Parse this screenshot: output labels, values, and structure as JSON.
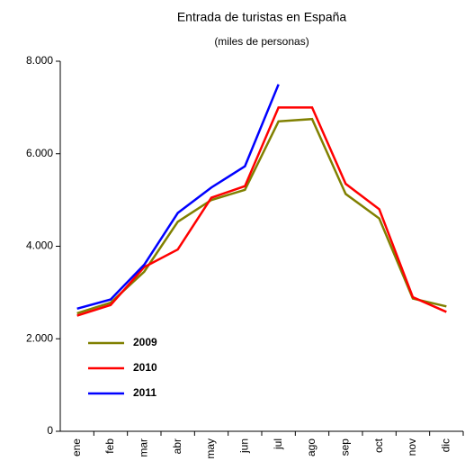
{
  "chart_data": {
    "type": "line",
    "title": "Entrada de turistas en España",
    "subtitle": "(miles de personas)",
    "categories": [
      "ene",
      "feb",
      "mar",
      "abr",
      "may",
      "jun",
      "jul",
      "ago",
      "sep",
      "oct",
      "nov",
      "dic"
    ],
    "series": [
      {
        "name": "2009",
        "color": "#808000",
        "values": [
          2550,
          2780,
          3450,
          4530,
          5000,
          5220,
          6700,
          6750,
          5130,
          4600,
          2870,
          2700
        ]
      },
      {
        "name": "2010",
        "color": "#ff0000",
        "values": [
          2500,
          2730,
          3550,
          3930,
          5050,
          5300,
          7000,
          7000,
          5350,
          4800,
          2900,
          2580
        ]
      },
      {
        "name": "2011",
        "color": "#0000ff",
        "values": [
          2650,
          2850,
          3600,
          4720,
          5270,
          5730,
          7500,
          null,
          null,
          null,
          null,
          null
        ]
      }
    ],
    "ylim": [
      0,
      8000
    ],
    "yticks": [
      0,
      {
        "value": 2000,
        "label": "2.000"
      },
      {
        "value": 4000,
        "label": "4.000"
      },
      {
        "value": 6000,
        "label": "6.000"
      },
      {
        "value": 8000,
        "label": "8.000"
      }
    ],
    "legend": "lower left"
  }
}
